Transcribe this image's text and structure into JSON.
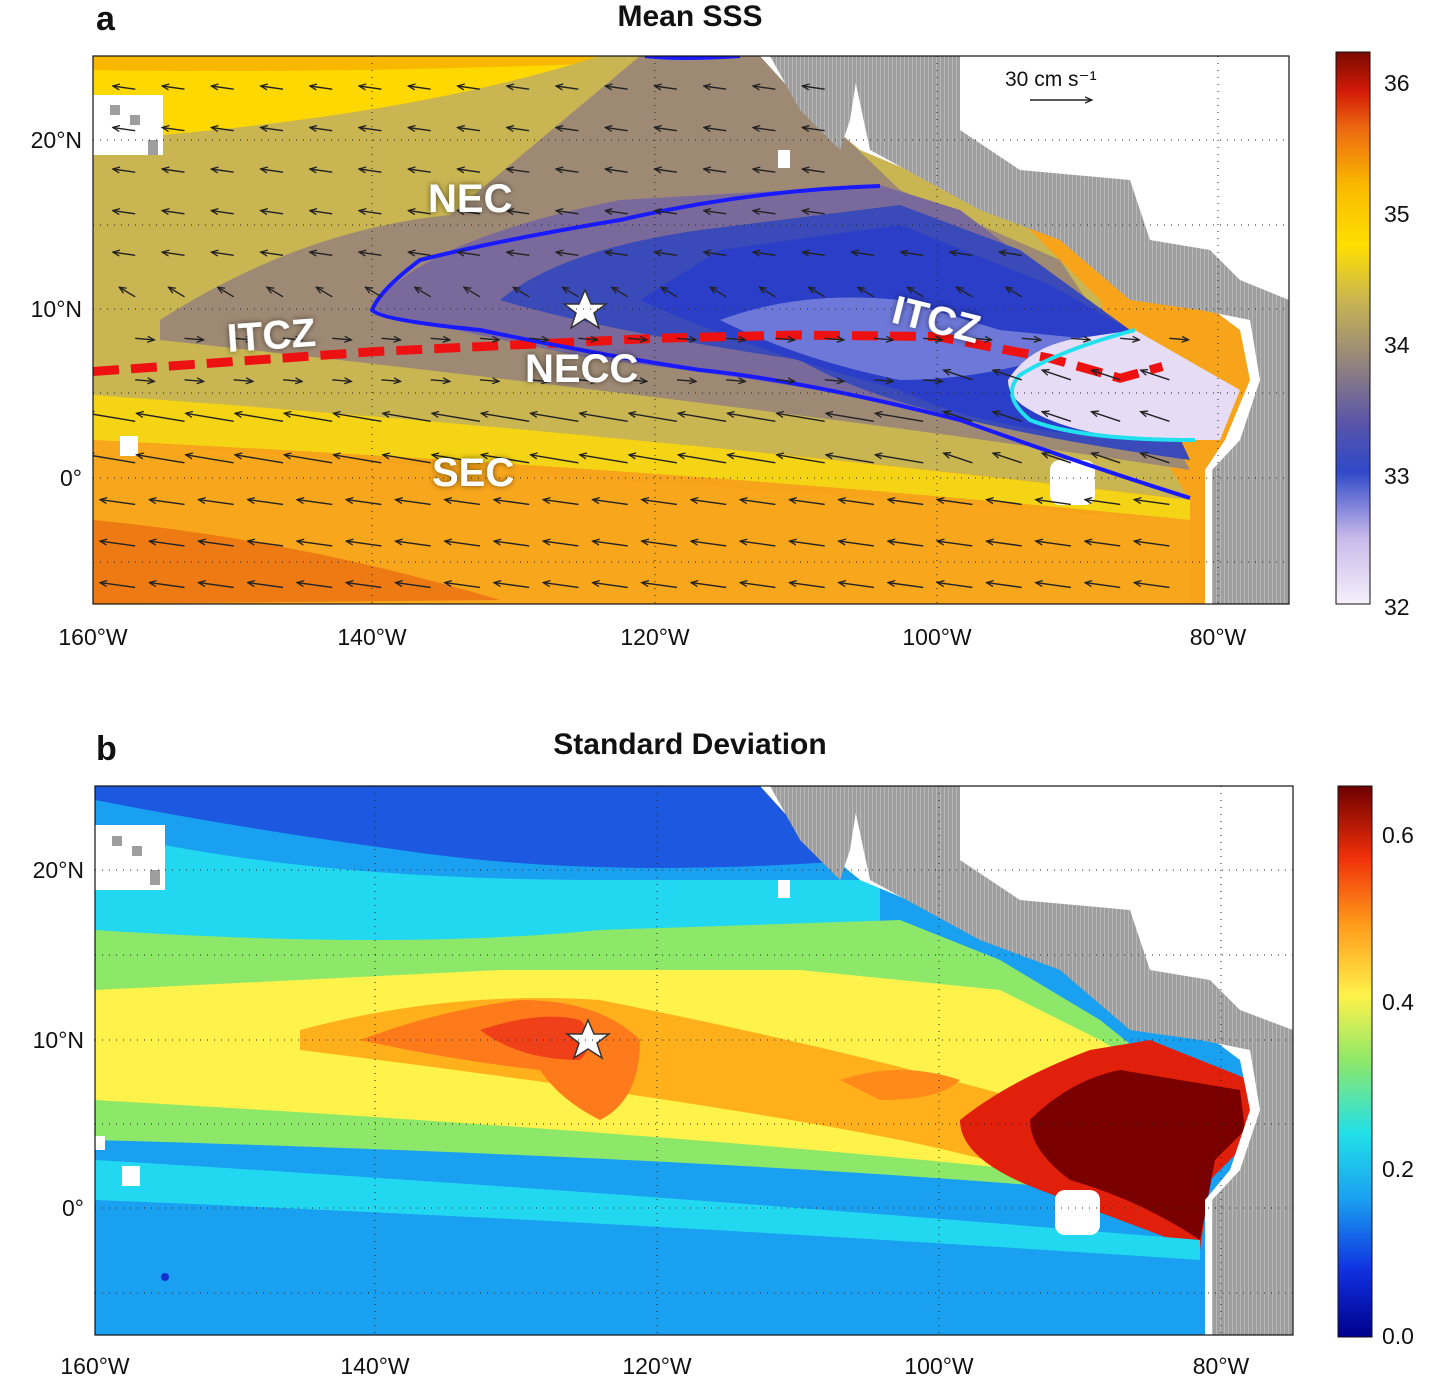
{
  "panel_a": {
    "letter": "a",
    "title": "Mean SSS",
    "scale_label": "30 cm s⁻¹",
    "x_tick_labels": [
      "160°W",
      "140°W",
      "120°W",
      "100°W",
      "80°W"
    ],
    "y_tick_labels": [
      "20°N",
      "10°N",
      "0°"
    ],
    "colorbar_ticks": [
      "36",
      "35",
      "34",
      "33",
      "32"
    ],
    "current_labels": {
      "nec": "NEC",
      "itcz_west": "ITCZ",
      "itcz_east": "ITCZ",
      "necc": "NECC",
      "sec": "SEC"
    },
    "colors": {
      "low": "#e9dff5",
      "blue": "#2f49c8",
      "khaki": "#b9a55b",
      "yellow": "#ffe000",
      "orange": "#f49a12",
      "high": "#7a0a00",
      "contour_34": "#1a1aff",
      "contour_33": "#22e0ee",
      "itcz": "#ee1111"
    }
  },
  "panel_b": {
    "letter": "b",
    "title": "Standard Deviation",
    "x_tick_labels": [
      "160°W",
      "140°W",
      "120°W",
      "100°W",
      "80°W"
    ],
    "y_tick_labels": [
      "20°N",
      "10°N",
      "0°"
    ],
    "colorbar_ticks": [
      "0.6",
      "0.4",
      "0.2",
      "0.0"
    ],
    "colors": {
      "low": "#1f3fd0",
      "cyan": "#22d8f0",
      "yellow": "#fff24a",
      "orange": "#ff8a1a",
      "high": "#7a0000"
    }
  },
  "chart_data": [
    {
      "type": "heatmap",
      "title": "Mean SSS",
      "lon_range": [
        -160,
        -75
      ],
      "lat_range": [
        -8,
        25
      ],
      "xticks": [
        "160°W",
        "140°W",
        "120°W",
        "100°W",
        "80°W"
      ],
      "yticks": [
        "20°N",
        "10°N",
        "0°"
      ],
      "colorbar": {
        "min": 32,
        "max": 36.2,
        "ticks": [
          32,
          33,
          34,
          35,
          36
        ]
      },
      "contours": {
        "blue": 34,
        "cyan": 33
      },
      "star": {
        "lon": -125,
        "lat": 10
      },
      "itcz_line": [
        [
          -160,
          6
        ],
        [
          -140,
          7.2
        ],
        [
          -120,
          8
        ],
        [
          -110,
          8.2
        ],
        [
          -100,
          8.1
        ],
        [
          -92,
          6.8
        ],
        [
          -87,
          5.6
        ],
        [
          -84,
          6.3
        ]
      ],
      "currents": [
        "NEC",
        "ITCZ",
        "ITCZ",
        "NECC",
        "SEC"
      ],
      "scale_vector": "30 cm s⁻¹"
    },
    {
      "type": "heatmap",
      "title": "Standard Deviation",
      "lon_range": [
        -160,
        -75
      ],
      "lat_range": [
        -8,
        25
      ],
      "xticks": [
        "160°W",
        "140°W",
        "120°W",
        "100°W",
        "80°W"
      ],
      "yticks": [
        "20°N",
        "10°N",
        "0°"
      ],
      "colorbar": {
        "min": 0.0,
        "max": 0.66,
        "ticks": [
          0.0,
          0.2,
          0.4,
          0.6
        ]
      },
      "star": {
        "lon": -125,
        "lat": 10
      }
    }
  ]
}
